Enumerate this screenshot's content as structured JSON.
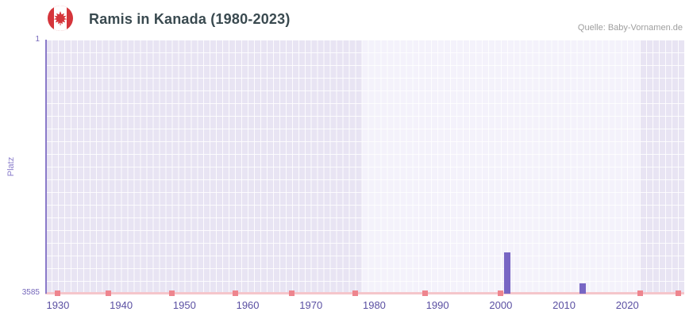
{
  "header": {
    "icon": "canada-flag-icon",
    "title": "Ramis in Kanada (1980-2023)",
    "source": "Quelle: Baby-Vornamen.de"
  },
  "chart_data": {
    "type": "bar",
    "title": "Ramis in Kanada (1980-2023)",
    "xlabel": "",
    "ylabel": "Platz",
    "y_ticks": [
      "1",
      "3585"
    ],
    "ylim": [
      1,
      3585
    ],
    "y_inverted": true,
    "x_ticks": [
      "1930",
      "1940",
      "1950",
      "1960",
      "1970",
      "1980",
      "1990",
      "2000",
      "2010",
      "2020"
    ],
    "x_range": [
      1928,
      2029
    ],
    "highlight_band": {
      "from_year": 1978,
      "to_year": 2022
    },
    "bars": [
      {
        "year": 2001,
        "rank": 3000
      },
      {
        "year": 2013,
        "rank": 3440
      }
    ],
    "bottom_markers": {
      "years": [
        1930,
        1938,
        1948,
        1958,
        1967,
        1977,
        1988,
        2000,
        2022,
        2028
      ],
      "rank": 3585
    },
    "grid": true,
    "legend": false,
    "colors": {
      "bar": "#7866c4",
      "bottom_marker": "#ee858e",
      "plot_background": "#e8e4f3",
      "highlight_band": "#f4f2fb",
      "x_axis_line": "#f5c6cb",
      "y_axis_line": "#8a7ac9",
      "x_tick_label": "#5a4fa2",
      "y_tick_label": "#7668bb",
      "title": "#3a4a50",
      "flag_red": "#d5353b"
    }
  }
}
